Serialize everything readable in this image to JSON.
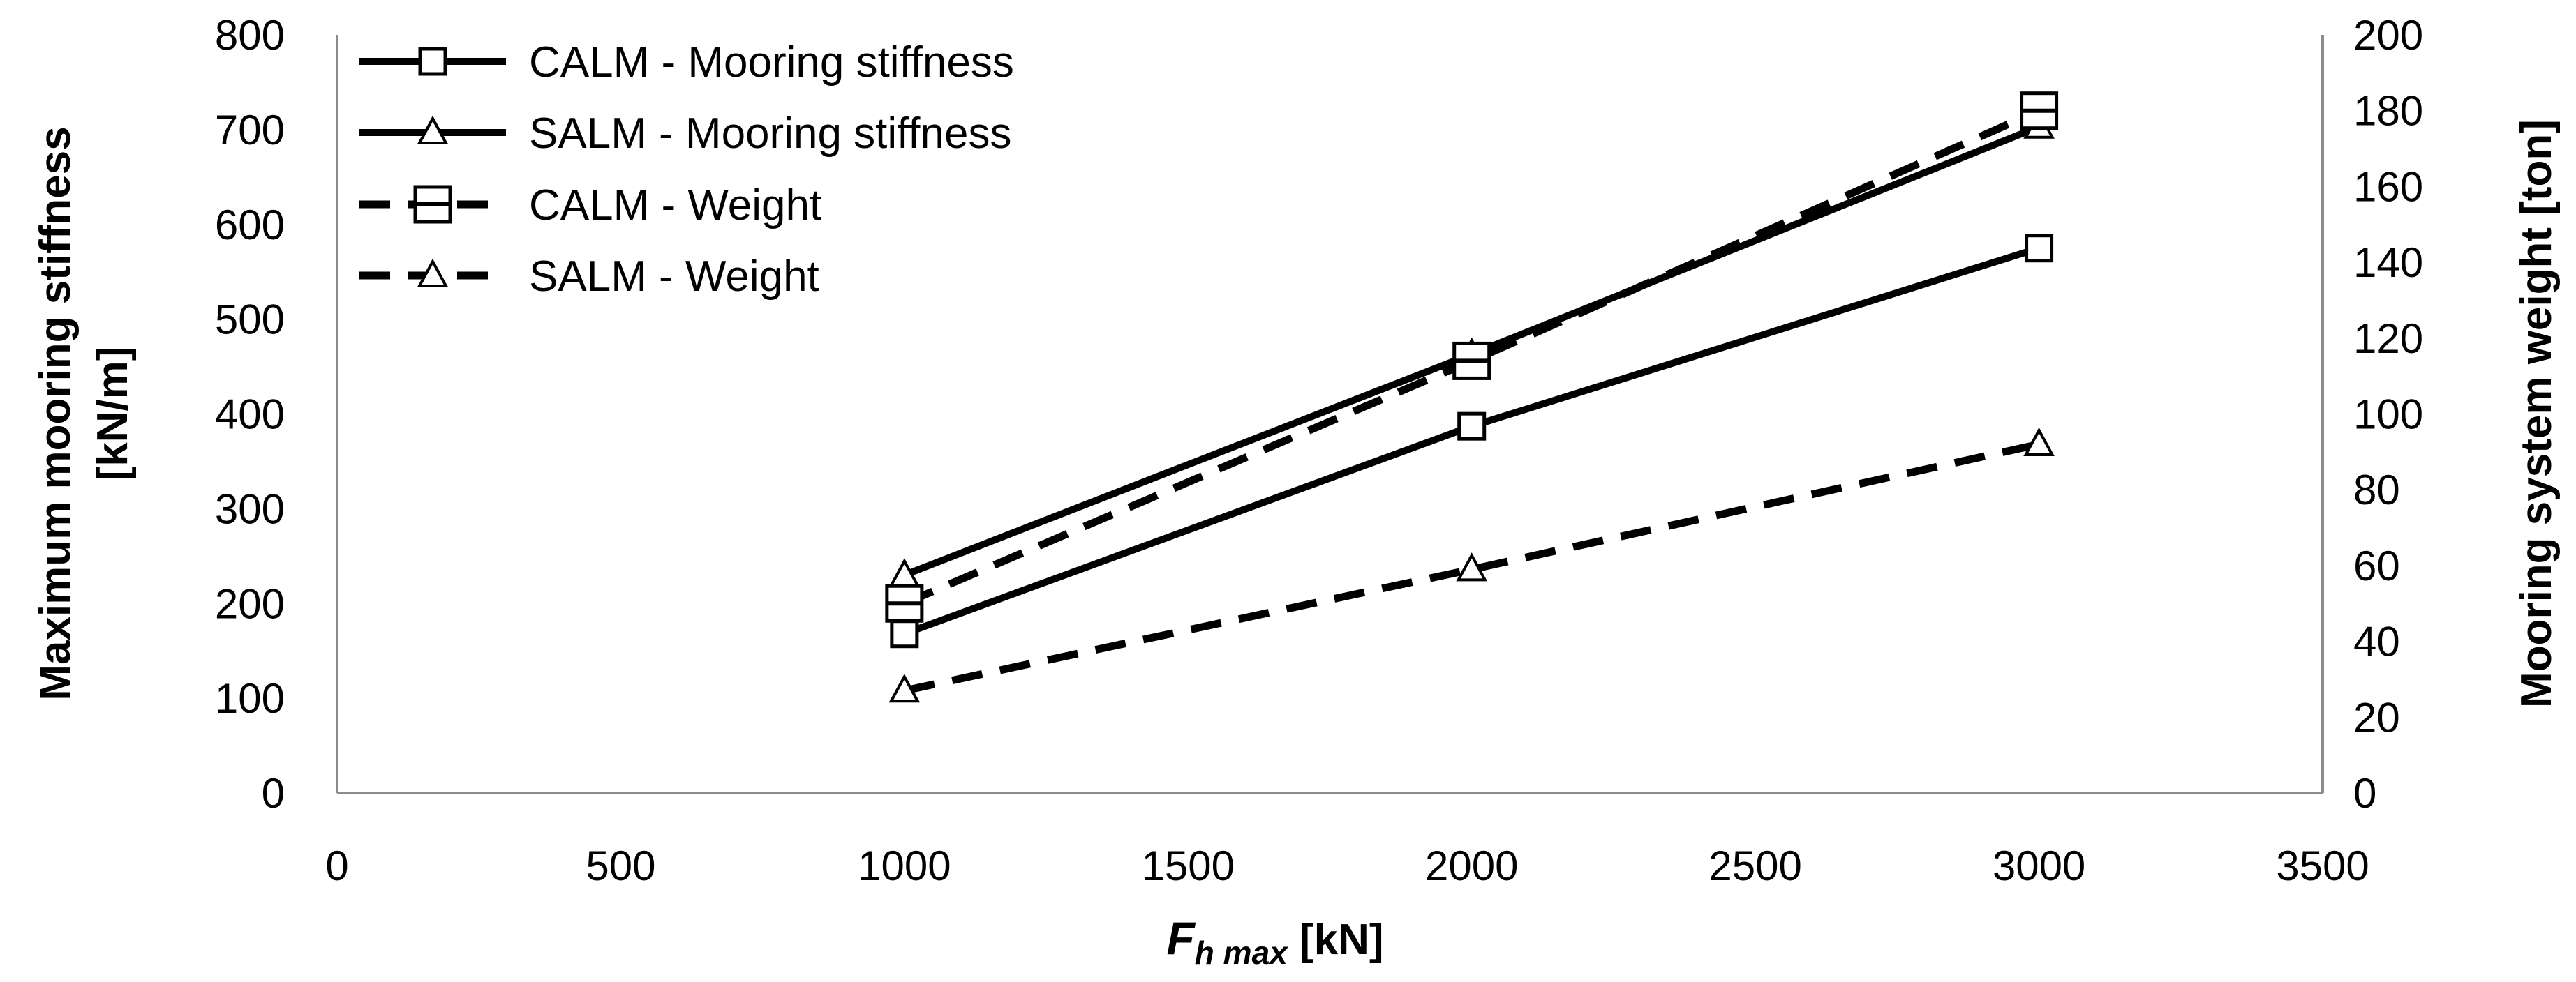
{
  "chart_data": {
    "type": "line",
    "title": "",
    "x_axis": {
      "label_main": "F",
      "label_sub": "h max",
      "label_unit": " [kN]",
      "min": 0,
      "max": 3500,
      "step": 500,
      "ticks": [
        "0",
        "500",
        "1000",
        "1500",
        "2000",
        "2500",
        "3000",
        "3500"
      ]
    },
    "y_axis_left": {
      "label_line1": "Maximum mooring stiffness",
      "label_line2": "[kN/m]",
      "min": 0,
      "max": 800,
      "step": 100,
      "ticks": [
        "0",
        "100",
        "200",
        "300",
        "400",
        "500",
        "600",
        "700",
        "800"
      ]
    },
    "y_axis_right": {
      "label": "Mooring system weight [ton]",
      "min": 0,
      "max": 200,
      "step": 20,
      "ticks": [
        "0",
        "20",
        "40",
        "60",
        "80",
        "100",
        "120",
        "140",
        "160",
        "180",
        "200"
      ]
    },
    "legend_position": "top-left",
    "grid": false,
    "series": [
      {
        "name": "CALM - Mooring stiffness",
        "axis": "left",
        "dash": "solid",
        "marker": "square",
        "x": [
          1000,
          2000,
          3000
        ],
        "y": [
          168,
          387,
          575
        ]
      },
      {
        "name": "SALM - Mooring stiffness",
        "axis": "left",
        "dash": "solid",
        "marker": "triangle",
        "x": [
          1000,
          2000,
          3000
        ],
        "y": [
          230,
          463,
          703
        ]
      },
      {
        "name": "CALM - Weight",
        "axis": "right",
        "dash": "dashed",
        "marker": "square-h",
        "x": [
          1000,
          2000,
          3000
        ],
        "y": [
          50,
          114,
          180
        ]
      },
      {
        "name": "SALM - Weight",
        "axis": "right",
        "dash": "dashed",
        "marker": "triangle",
        "x": [
          1000,
          2000,
          3000
        ],
        "y": [
          27,
          59,
          92
        ]
      }
    ]
  }
}
